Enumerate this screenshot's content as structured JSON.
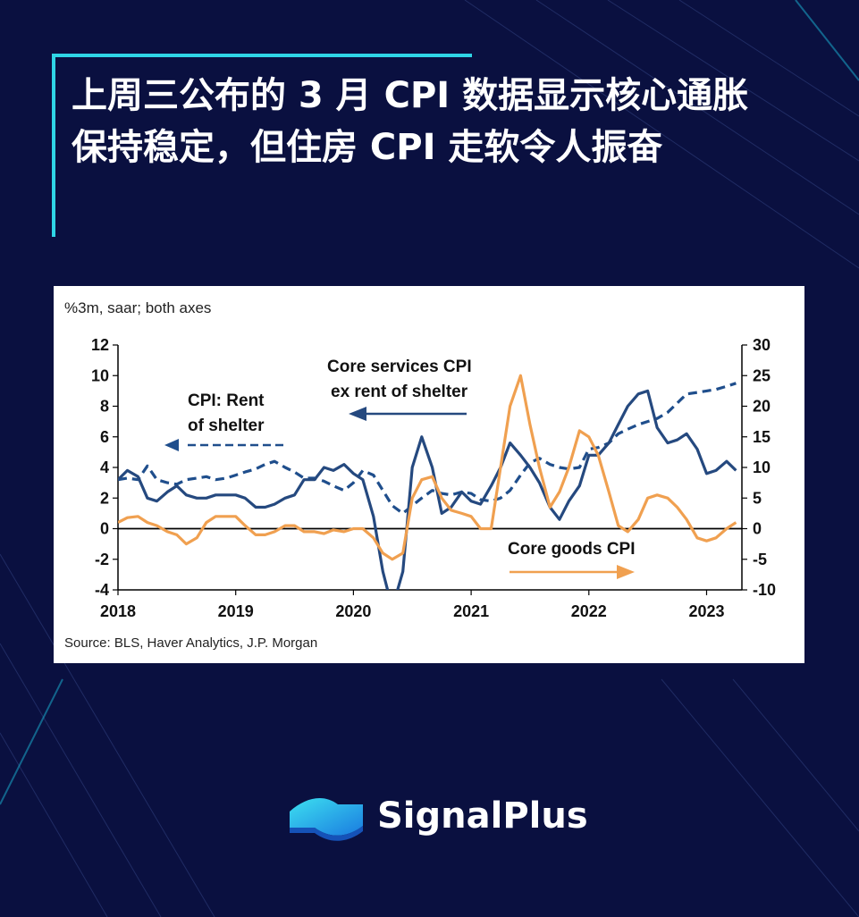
{
  "title": "上周三公布的 3 月 CPI 数据显示核心通胀保持稳定，但住房 CPI 走软令人振奋",
  "brand": {
    "name": "SignalPlus",
    "logo_icon": "signalplus-wave-icon"
  },
  "colors": {
    "background": "#0a1040",
    "accent": "#2fd5e6",
    "rent": "#1f4e8c",
    "core_services": "#25497f",
    "core_goods": "#f0a050"
  },
  "chart_data": {
    "type": "line",
    "subtitle": "%3m, saar; both axes",
    "source": "Source: BLS, Haver Analytics, J.P. Morgan",
    "x_ticks": [
      "2018",
      "2019",
      "2020",
      "2021",
      "2022",
      "2023"
    ],
    "xlim": [
      2018.0,
      2023.3
    ],
    "y_left": {
      "min": -4,
      "max": 12,
      "ticks": [
        "12",
        "10",
        "8",
        "6",
        "4",
        "2",
        "0",
        "-2",
        "-4"
      ]
    },
    "y_right": {
      "min": -10,
      "max": 30,
      "ticks": [
        "30",
        "25",
        "20",
        "15",
        "10",
        "5",
        "0",
        "-5",
        "-10"
      ]
    },
    "annotations": {
      "rent_line1": "CPI: Rent",
      "rent_line2": "of shelter",
      "services_line1": "Core services CPI",
      "services_line2": "ex rent of shelter",
      "goods": "Core goods CPI"
    },
    "series": [
      {
        "name": "CPI: Rent of shelter",
        "axis": "left",
        "style": "dashed",
        "x": [
          2018.0,
          2018.08,
          2018.17,
          2018.25,
          2018.33,
          2018.42,
          2018.5,
          2018.58,
          2018.67,
          2018.75,
          2018.83,
          2018.92,
          2019.0,
          2019.08,
          2019.17,
          2019.25,
          2019.33,
          2019.42,
          2019.5,
          2019.58,
          2019.67,
          2019.75,
          2019.83,
          2019.92,
          2020.0,
          2020.08,
          2020.17,
          2020.25,
          2020.33,
          2020.42,
          2020.5,
          2020.58,
          2020.67,
          2020.75,
          2020.83,
          2020.92,
          2021.0,
          2021.08,
          2021.17,
          2021.25,
          2021.33,
          2021.42,
          2021.5,
          2021.58,
          2021.67,
          2021.75,
          2021.83,
          2021.92,
          2022.0,
          2022.08,
          2022.17,
          2022.25,
          2022.33,
          2022.42,
          2022.5,
          2022.58,
          2022.67,
          2022.75,
          2022.83,
          2022.92,
          2023.0,
          2023.08,
          2023.17,
          2023.25
        ],
        "values": [
          3.2,
          3.3,
          3.2,
          4.1,
          3.2,
          3.0,
          2.9,
          3.2,
          3.3,
          3.4,
          3.2,
          3.3,
          3.5,
          3.7,
          3.9,
          4.2,
          4.4,
          4.0,
          3.7,
          3.3,
          3.3,
          3.1,
          2.8,
          2.5,
          3.0,
          3.8,
          3.5,
          2.5,
          1.5,
          1.0,
          1.5,
          2.0,
          2.5,
          2.3,
          2.2,
          2.4,
          2.3,
          1.9,
          1.8,
          2.0,
          2.5,
          3.5,
          4.3,
          4.6,
          4.2,
          4.0,
          3.9,
          4.0,
          5.2,
          5.3,
          5.6,
          6.2,
          6.5,
          6.8,
          7.0,
          7.2,
          7.6,
          8.2,
          8.8,
          8.9,
          9.0,
          9.1,
          9.3,
          9.5
        ]
      },
      {
        "name": "Core services CPI ex rent of shelter",
        "axis": "right",
        "style": "solid",
        "x": [
          2018.0,
          2018.08,
          2018.17,
          2018.25,
          2018.33,
          2018.42,
          2018.5,
          2018.58,
          2018.67,
          2018.75,
          2018.83,
          2018.92,
          2019.0,
          2019.08,
          2019.17,
          2019.25,
          2019.33,
          2019.42,
          2019.5,
          2019.58,
          2019.67,
          2019.75,
          2019.83,
          2019.92,
          2020.0,
          2020.08,
          2020.17,
          2020.25,
          2020.33,
          2020.42,
          2020.5,
          2020.58,
          2020.67,
          2020.75,
          2020.83,
          2020.92,
          2021.0,
          2021.08,
          2021.17,
          2021.25,
          2021.33,
          2021.42,
          2021.5,
          2021.58,
          2021.67,
          2021.75,
          2021.83,
          2021.92,
          2022.0,
          2022.08,
          2022.17,
          2022.25,
          2022.33,
          2022.42,
          2022.5,
          2022.58,
          2022.67,
          2022.75,
          2022.83,
          2022.92,
          2023.0,
          2023.08,
          2023.17,
          2023.25
        ],
        "values": [
          8,
          9.5,
          8.5,
          5,
          4.5,
          6,
          7,
          5.5,
          5,
          5,
          5.5,
          5.5,
          5.5,
          5,
          3.5,
          3.5,
          4,
          5,
          5.5,
          8,
          8,
          10,
          9.5,
          10.5,
          9,
          8,
          2,
          -7,
          -13,
          -7,
          10,
          15,
          10,
          2.5,
          3.5,
          6,
          4.5,
          4,
          7,
          10,
          14,
          12,
          10,
          7.5,
          3.5,
          1.5,
          4.5,
          7,
          12,
          12,
          14,
          17,
          20,
          22,
          22.5,
          16.5,
          14,
          14.5,
          15.5,
          13,
          9,
          9.5,
          11,
          9.5
        ]
      },
      {
        "name": "Core goods CPI",
        "axis": "right",
        "style": "solid",
        "x": [
          2018.0,
          2018.08,
          2018.17,
          2018.25,
          2018.33,
          2018.42,
          2018.5,
          2018.58,
          2018.67,
          2018.75,
          2018.83,
          2018.92,
          2019.0,
          2019.08,
          2019.17,
          2019.25,
          2019.33,
          2019.42,
          2019.5,
          2019.58,
          2019.67,
          2019.75,
          2019.83,
          2019.92,
          2020.0,
          2020.08,
          2020.17,
          2020.25,
          2020.33,
          2020.42,
          2020.5,
          2020.58,
          2020.67,
          2020.75,
          2020.83,
          2020.92,
          2021.0,
          2021.08,
          2021.17,
          2021.25,
          2021.33,
          2021.42,
          2021.5,
          2021.58,
          2021.67,
          2021.75,
          2021.83,
          2021.92,
          2022.0,
          2022.08,
          2022.17,
          2022.25,
          2022.33,
          2022.42,
          2022.5,
          2022.58,
          2022.67,
          2022.75,
          2022.83,
          2022.92,
          2023.0,
          2023.08,
          2023.17,
          2023.25
        ],
        "values": [
          1,
          1.8,
          2,
          1,
          0.5,
          -0.5,
          -1,
          -2.5,
          -1.5,
          1,
          2,
          2,
          2,
          0.5,
          -1,
          -1,
          -0.5,
          0.5,
          0.5,
          -0.5,
          -0.5,
          -0.8,
          -0.2,
          -0.5,
          0,
          0,
          -1.5,
          -4,
          -5,
          -4,
          5,
          8,
          8.5,
          5,
          3,
          2.5,
          2,
          0,
          0,
          10,
          20,
          25,
          17,
          10,
          3.5,
          6,
          10,
          16,
          15,
          12,
          6,
          0.5,
          -0.5,
          1.5,
          5,
          5.5,
          5,
          3.5,
          1.5,
          -1.5,
          -2,
          -1.5,
          0,
          1
        ]
      }
    ]
  }
}
